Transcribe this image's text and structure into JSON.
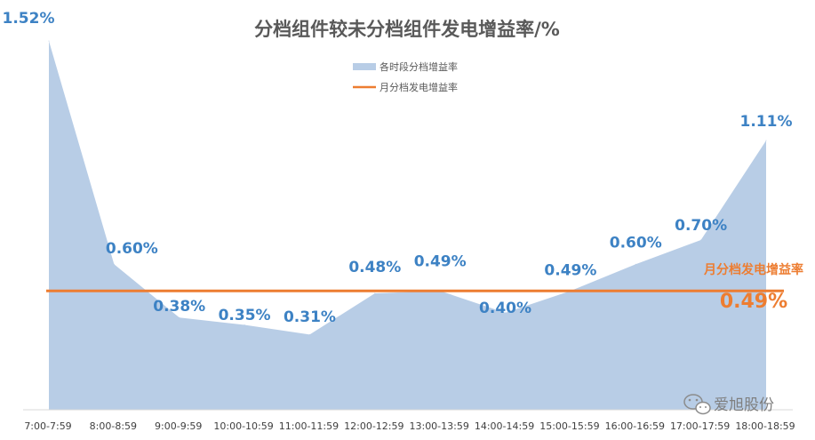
{
  "chart_data": {
    "type": "area",
    "title": "分档组件较未分档组件发电增益率/%",
    "categories": [
      "7:00-7:59",
      "8:00-8:59",
      "9:00-9:59",
      "10:00-10:59",
      "11:00-11:59",
      "12:00-12:59",
      "13:00-13:59",
      "14:00-14:59",
      "15:00-15:59",
      "16:00-16:59",
      "17:00-17:59",
      "18:00-18:59"
    ],
    "series": [
      {
        "name": "各时段分档增益率",
        "type": "area",
        "color": "#b8cde6",
        "values": [
          1.52,
          0.6,
          0.38,
          0.35,
          0.31,
          0.48,
          0.49,
          0.4,
          0.49,
          0.6,
          0.7,
          1.11
        ],
        "labels": [
          "1.52%",
          "0.60%",
          "0.38%",
          "0.35%",
          "0.31%",
          "0.48%",
          "0.49%",
          "0.40%",
          "0.49%",
          "0.60%",
          "0.70%",
          "1.11%"
        ]
      },
      {
        "name": "月分档发电增益率",
        "type": "line",
        "color": "#ed7d31",
        "value": 0.49,
        "label_name": "月分档发电增益率",
        "label_value": "0.49%"
      }
    ],
    "ylim": [
      0,
      1.55
    ],
    "grid": false,
    "legend": "top-center",
    "xlabel": "",
    "ylabel": ""
  },
  "watermark": {
    "icon": "wechat-icon",
    "text": "爱旭股份"
  }
}
